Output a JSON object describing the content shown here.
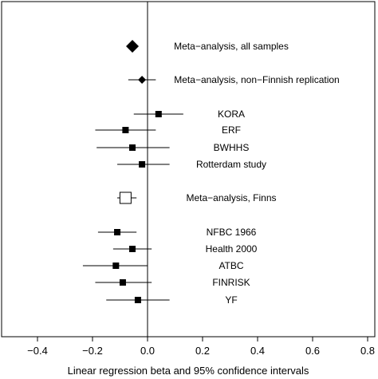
{
  "chart_data": {
    "type": "forest",
    "xlabel": "Linear regression beta and 95% confidence intervals",
    "xlim": [
      -0.5,
      0.85
    ],
    "xticks": [
      -0.4,
      -0.2,
      0.0,
      0.2,
      0.4,
      0.6,
      0.8
    ],
    "xtick_labels": [
      "−0.4",
      "−0.2",
      "0.0",
      "0.2",
      "0.4",
      "0.6",
      "0.8"
    ],
    "reference_line": 0,
    "rows": [
      {
        "label": "Meta−analysis, all samples",
        "estimate": -0.055,
        "ci": [
          -0.07,
          -0.04
        ],
        "marker": "diamond-large"
      },
      {
        "label": "Meta−analysis, non−Finnish replication",
        "estimate": -0.02,
        "ci": [
          -0.07,
          0.03
        ],
        "marker": "diamond"
      },
      {
        "label": "KORA",
        "estimate": 0.04,
        "ci": [
          -0.05,
          0.13
        ],
        "marker": "square"
      },
      {
        "label": "ERF",
        "estimate": -0.08,
        "ci": [
          -0.19,
          0.03
        ],
        "marker": "square"
      },
      {
        "label": "BWHHS",
        "estimate": -0.055,
        "ci": [
          -0.185,
          0.08
        ],
        "marker": "square"
      },
      {
        "label": "Rotterdam study",
        "estimate": -0.02,
        "ci": [
          -0.11,
          0.08
        ],
        "marker": "square"
      },
      {
        "label": "Meta−analysis, Finns",
        "estimate": -0.08,
        "ci": [
          -0.11,
          -0.04
        ],
        "marker": "open-square"
      },
      {
        "label": "NFBC 1966",
        "estimate": -0.11,
        "ci": [
          -0.18,
          -0.04
        ],
        "marker": "square"
      },
      {
        "label": "Health 2000",
        "estimate": -0.055,
        "ci": [
          -0.125,
          0.015
        ],
        "marker": "square"
      },
      {
        "label": "ATBC",
        "estimate": -0.115,
        "ci": [
          -0.235,
          0.0
        ],
        "marker": "square"
      },
      {
        "label": "FINRISK",
        "estimate": -0.09,
        "ci": [
          -0.19,
          0.015
        ],
        "marker": "square"
      },
      {
        "label": "YF",
        "estimate": -0.035,
        "ci": [
          -0.15,
          0.08
        ],
        "marker": "square"
      }
    ]
  }
}
